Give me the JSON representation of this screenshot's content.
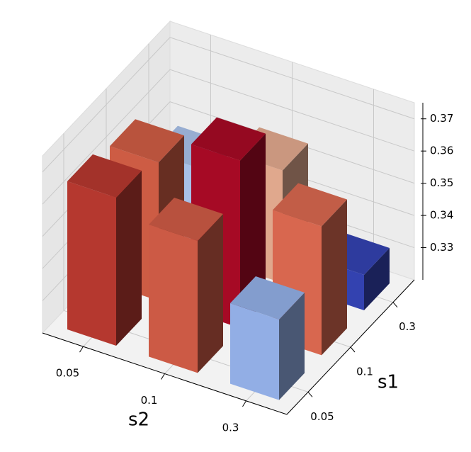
{
  "chart_data": {
    "type": "bar3d",
    "xlabel": "s2",
    "ylabel": "s1",
    "x_categories": [
      "0.05",
      "0.1",
      "0.3"
    ],
    "y_categories": [
      "0.05",
      "0.1",
      "0.3"
    ],
    "values": [
      [
        0.366,
        0.361,
        0.345
      ],
      [
        0.363,
        0.372,
        0.36
      ],
      [
        0.347,
        0.355,
        0.331
      ]
    ],
    "colors": [
      [
        "#b5382f",
        "#cc5a45",
        "#92aee5"
      ],
      [
        "#cd5c44",
        "#a60a25",
        "#d8674f"
      ],
      [
        "#a8c0e8",
        "#e0a88d",
        "#3342b0"
      ]
    ],
    "zlim": [
      0.32,
      0.375
    ],
    "zticks": [
      0.33,
      0.34,
      0.35,
      0.36,
      0.37
    ],
    "grid": true
  }
}
